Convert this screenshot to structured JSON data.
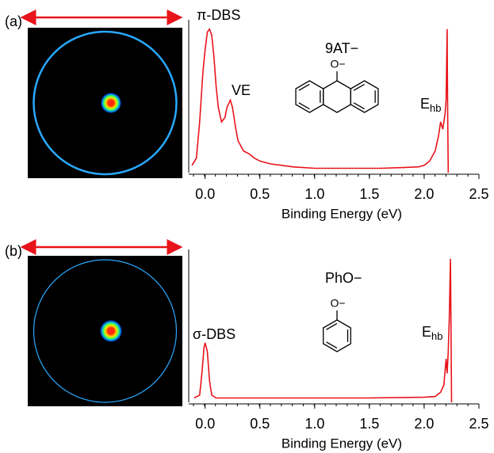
{
  "chart_data": [
    {
      "type": "line",
      "panel_label": "(a)",
      "xlabel": "Binding Energy (eV)",
      "xlim": [
        -0.15,
        2.5
      ],
      "xticks": [
        {
          "value": 0,
          "label": "0.0"
        },
        0.5,
        {
          "value": 1,
          "label": "1.0"
        },
        1.5,
        {
          "value": 2,
          "label": "2.0"
        },
        2.5
      ],
      "ylim": [
        0,
        1
      ],
      "x": [
        -0.12,
        -0.08,
        -0.05,
        -0.02,
        0.0,
        0.02,
        0.04,
        0.06,
        0.08,
        0.1,
        0.12,
        0.15,
        0.18,
        0.2,
        0.23,
        0.25,
        0.28,
        0.3,
        0.35,
        0.4,
        0.45,
        0.5,
        0.6,
        0.7,
        0.8,
        1.0,
        1.2,
        1.4,
        1.6,
        1.8,
        1.95,
        2.0,
        2.05,
        2.1,
        2.13,
        2.15,
        2.17,
        2.19,
        2.2,
        2.21,
        2.215,
        2.22
      ],
      "series": [
        {
          "color": "#e8141b",
          "values": [
            0.05,
            0.1,
            0.35,
            0.7,
            0.85,
            0.97,
            0.99,
            0.95,
            0.8,
            0.6,
            0.45,
            0.35,
            0.38,
            0.45,
            0.5,
            0.45,
            0.3,
            0.22,
            0.15,
            0.13,
            0.1,
            0.08,
            0.06,
            0.05,
            0.04,
            0.03,
            0.03,
            0.03,
            0.03,
            0.035,
            0.04,
            0.05,
            0.08,
            0.15,
            0.25,
            0.35,
            0.3,
            0.4,
            0.5,
            0.99,
            0.4,
            0.0
          ]
        }
      ],
      "annotations": [
        {
          "text": "π-DBS"
        },
        {
          "text": "VE"
        },
        {
          "text": "9AT−"
        },
        {
          "text": "E",
          "subscript": "hb"
        }
      ],
      "molecule_label": "O−"
    },
    {
      "type": "line",
      "panel_label": "(b)",
      "xlabel": "Binding Energy (eV)",
      "xlim": [
        -0.15,
        2.5
      ],
      "xticks": [
        {
          "value": 0,
          "label": "0.0"
        },
        0.5,
        {
          "value": 1,
          "label": "1.0"
        },
        1.5,
        {
          "value": 2,
          "label": "2.0"
        },
        2.5
      ],
      "ylim": [
        0,
        1
      ],
      "x": [
        -0.1,
        -0.05,
        -0.03,
        -0.01,
        0.0,
        0.02,
        0.04,
        0.06,
        0.1,
        0.5,
        1.0,
        1.5,
        2.0,
        2.1,
        2.15,
        2.18,
        2.2,
        2.21,
        2.22,
        2.23,
        2.24,
        2.245,
        2.25
      ],
      "series": [
        {
          "color": "#e8141b",
          "values": [
            0.03,
            0.05,
            0.2,
            0.38,
            0.41,
            0.35,
            0.15,
            0.05,
            0.03,
            0.03,
            0.03,
            0.03,
            0.035,
            0.04,
            0.07,
            0.12,
            0.3,
            0.2,
            0.35,
            0.6,
            0.99,
            0.5,
            0.0
          ]
        }
      ],
      "annotations": [
        {
          "text": "σ-DBS"
        },
        {
          "text": "PhO−"
        },
        {
          "text": "E",
          "subscript": "hb"
        }
      ],
      "molecule_label": "O−"
    }
  ]
}
